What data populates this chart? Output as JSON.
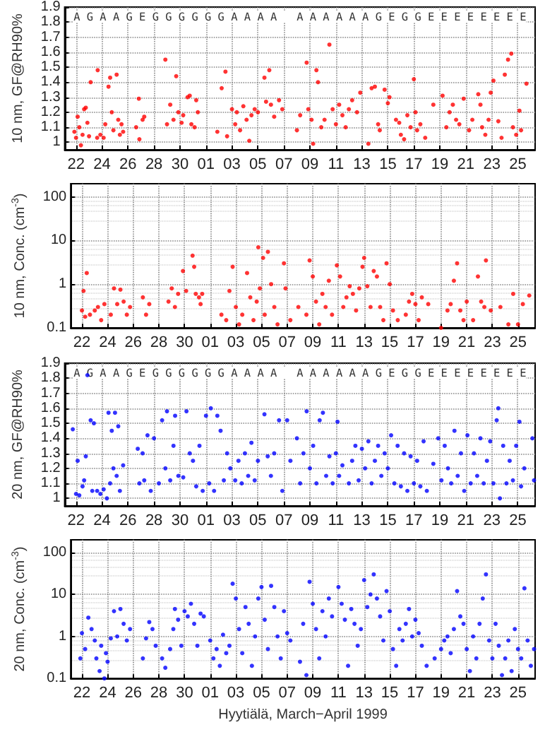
{
  "chart_data": [
    {
      "type": "scatter",
      "ylabel": "10 nm, GF@RH90%",
      "xlim": [
        "1999-03-21T03:00",
        "1999-04-26T08:00"
      ],
      "ylim": [
        0.95,
        1.9
      ],
      "yticks": [
        1,
        1.1,
        1.2,
        1.3,
        1.4,
        1.5,
        1.6,
        1.7,
        1.8,
        1.9
      ],
      "xticks": [
        {
          "value": "1999-03-22",
          "label": "22"
        },
        {
          "value": "1999-03-24",
          "label": "24"
        },
        {
          "value": "1999-03-26",
          "label": "26"
        },
        {
          "value": "1999-03-28",
          "label": "28"
        },
        {
          "value": "1999-03-30",
          "label": "30"
        },
        {
          "value": "1999-04-01",
          "label": "01"
        },
        {
          "value": "1999-04-03",
          "label": "03"
        },
        {
          "value": "1999-04-05",
          "label": "05"
        },
        {
          "value": "1999-04-07",
          "label": "07"
        },
        {
          "value": "1999-04-09",
          "label": "09"
        },
        {
          "value": "1999-04-11",
          "label": "11"
        },
        {
          "value": "1999-04-13",
          "label": "13"
        },
        {
          "value": "1999-04-15",
          "label": "15"
        },
        {
          "value": "1999-04-17",
          "label": "17"
        },
        {
          "value": "1999-04-19",
          "label": "19"
        },
        {
          "value": "1999-04-21",
          "label": "21"
        },
        {
          "value": "1999-04-23",
          "label": "23"
        },
        {
          "value": "1999-04-25",
          "label": "25"
        }
      ],
      "grid": true,
      "marker": "circle",
      "annotations": [
        "A G A A G E G G G G G G A A A A   A A A A A A G E G G E E E E E E E E"
      ],
      "series": [
        {
          "color": "#ff0000",
          "x": [
            "1999-03-21T21:00",
            "1999-03-22T00:00",
            "1999-03-22T03:00",
            "1999-03-22T06:00",
            "1999-03-22T09:00",
            "1999-03-22T12:00",
            "1999-03-22T15:00",
            "1999-03-22T18:00",
            "1999-03-22T21:00",
            "1999-03-23T00:00",
            "1999-03-23T03:00",
            "1999-03-23T15:00",
            "1999-03-23T16:00",
            "1999-03-23T21:00",
            "1999-03-24T03:00",
            "1999-03-24T06:00",
            "1999-03-24T12:00",
            "1999-03-24T15:00",
            "1999-03-24T18:00",
            "1999-03-24T21:00",
            "1999-03-25T03:00",
            "1999-03-25T06:00",
            "1999-03-25T09:00",
            "1999-03-25T12:00",
            "1999-03-25T15:00",
            "1999-03-26T15:00",
            "1999-03-26T20:00",
            "1999-03-26T21:00",
            "1999-03-27T03:00",
            "1999-03-27T06:00",
            "1999-03-28T21:00",
            "1999-03-29T00:00",
            "1999-03-29T06:00",
            "1999-03-29T12:00",
            "1999-03-29T17:00",
            "1999-03-29T21:00",
            "1999-03-30T03:00",
            "1999-03-30T06:00",
            "1999-03-30T14:00",
            "1999-03-30T18:00",
            "1999-03-30T21:00",
            "1999-03-31T03:00",
            "1999-03-31T06:00",
            "1999-03-31T09:00",
            "1999-04-01T21:00",
            "1999-04-02T05:00",
            "1999-04-02T12:00",
            "1999-04-02T15:00",
            "1999-04-03T00:00",
            "1999-04-03T06:00",
            "1999-04-03T09:00",
            "1999-04-03T15:00",
            "1999-04-03T21:00",
            "1999-04-04T03:00",
            "1999-04-04T08:00",
            "1999-04-04T12:00",
            "1999-04-04T18:00",
            "1999-04-05T00:00",
            "1999-04-05T12:00",
            "1999-04-05T15:00",
            "1999-04-05T21:00",
            "1999-04-06T00:00",
            "1999-04-06T06:00",
            "1999-04-06T15:00",
            "1999-04-06T21:00",
            "1999-04-08T00:00",
            "1999-04-08T06:00",
            "1999-04-08T18:00",
            "1999-04-08T21:00",
            "1999-04-09T03:00",
            "1999-04-09T06:00",
            "1999-04-09T12:00",
            "1999-04-09T15:00",
            "1999-04-09T21:00",
            "1999-04-10T03:00",
            "1999-04-10T12:00",
            "1999-04-10T18:00",
            "1999-04-11T00:00",
            "1999-04-11T06:00",
            "1999-04-11T12:00",
            "1999-04-11T18:00",
            "1999-04-12T00:00",
            "1999-04-12T06:00",
            "1999-04-12T15:00",
            "1999-04-12T21:00",
            "1999-04-13T12:00",
            "1999-04-13T18:00",
            "1999-04-14T00:00",
            "1999-04-14T06:00",
            "1999-04-14T09:00",
            "1999-04-14T18:00",
            "1999-04-15T00:00",
            "1999-04-15T03:00",
            "1999-04-15T15:00",
            "1999-04-15T21:00",
            "1999-04-16T00:00",
            "1999-04-16T06:00",
            "1999-04-16T12:00",
            "1999-04-16T18:00",
            "1999-04-17T00:00",
            "1999-04-17T03:00",
            "1999-04-17T06:00",
            "1999-04-17T12:00",
            "1999-04-17T21:00",
            "1999-04-18T12:00",
            "1999-04-19T05:00",
            "1999-04-19T12:00",
            "1999-04-19T18:00",
            "1999-04-20T00:00",
            "1999-04-20T06:00",
            "1999-04-20T12:00",
            "1999-04-20T20:00",
            "1999-04-21T06:00",
            "1999-04-21T12:00",
            "1999-04-21T23:00",
            "1999-04-22T03:00",
            "1999-04-22T06:00",
            "1999-04-22T12:00",
            "1999-04-22T18:00",
            "1999-04-22T22:00",
            "1999-04-23T03:00",
            "1999-04-23T12:00",
            "1999-04-23T18:00",
            "1999-04-24T00:00",
            "1999-04-24T06:00",
            "1999-04-24T12:00",
            "1999-04-24T15:00",
            "1999-04-24T21:00",
            "1999-04-25T03:00",
            "1999-04-25T06:00",
            "1999-04-25T16:00"
          ],
          "values": [
            1.07,
            1.03,
            1.17,
            1.1,
            0.98,
            1.05,
            1.22,
            1.23,
            1.13,
            1.04,
            1.4,
            1.03,
            1.48,
            1.05,
            1.03,
            1.12,
            1.37,
            1.43,
            1.2,
            1.08,
            1.45,
            1.15,
            1.05,
            1.12,
            1.07,
            1.1,
            1.29,
            1.02,
            1.15,
            1.17,
            1.55,
            1.12,
            1.25,
            1.15,
            1.44,
            1.2,
            1.13,
            1.18,
            1.3,
            1.31,
            1.12,
            1.1,
            1.28,
            1.2,
            1.07,
            1.36,
            1.47,
            1.04,
            1.22,
            1.12,
            1.2,
            1.08,
            1.24,
            1.15,
            1.01,
            1.18,
            1.22,
            1.2,
            1.43,
            1.27,
            1.48,
            1.25,
            1.17,
            1.28,
            1.22,
            1.08,
            1.18,
            1.53,
            1.22,
            1.15,
            0.99,
            1.48,
            1.4,
            1.1,
            1.15,
            1.65,
            1.22,
            1.12,
            1.25,
            1.18,
            1.1,
            1.22,
            1.28,
            1.2,
            1.33,
            0.99,
            1.36,
            1.37,
            1.12,
            1.08,
            1.35,
            1.26,
            1.3,
            1.15,
            1.13,
            1.05,
            1.02,
            1.18,
            1.1,
            1.42,
            1.2,
            1.08,
            1.12,
            1.03,
            1.25,
            1.31,
            1.1,
            1.2,
            1.25,
            1.15,
            1.12,
            1.29,
            1.08,
            1.15,
            1.32,
            1.25,
            1.1,
            1.05,
            1.15,
            1.33,
            1.41,
            1.14,
            1.03,
            1.45,
            1.55,
            1.59,
            1.1,
            1.05,
            1.21,
            1.08,
            1.39
          ]
        }
      ]
    },
    {
      "type": "scatter",
      "ylabel": "10 nm, Conc. (cm$^{-3}$)",
      "log": true,
      "xlim": [
        "1999-03-21T03:00",
        "1999-04-26T08:00"
      ],
      "ylim": [
        0.1,
        200
      ],
      "yticks": [
        0.1,
        1,
        10,
        100
      ],
      "xticks": [
        {
          "value": "1999-03-22",
          "label": "22"
        },
        {
          "value": "1999-03-24",
          "label": "24"
        },
        {
          "value": "1999-03-26",
          "label": "26"
        },
        {
          "value": "1999-03-28",
          "label": "28"
        },
        {
          "value": "1999-03-30",
          "label": "30"
        },
        {
          "value": "1999-04-01",
          "label": "01"
        },
        {
          "value": "1999-04-03",
          "label": "03"
        },
        {
          "value": "1999-04-05",
          "label": "05"
        },
        {
          "value": "1999-04-07",
          "label": "07"
        },
        {
          "value": "1999-04-09",
          "label": "09"
        },
        {
          "value": "1999-04-11",
          "label": "11"
        },
        {
          "value": "1999-04-13",
          "label": "13"
        },
        {
          "value": "1999-04-15",
          "label": "15"
        },
        {
          "value": "1999-04-17",
          "label": "17"
        },
        {
          "value": "1999-04-19",
          "label": "19"
        },
        {
          "value": "1999-04-21",
          "label": "21"
        },
        {
          "value": "1999-04-23",
          "label": "23"
        },
        {
          "value": "1999-04-25",
          "label": "25"
        }
      ],
      "grid": true,
      "marker": "circle",
      "series": [
        {
          "color": "#ff0000",
          "x": [
            "1999-03-22T00:00",
            "1999-03-22T03:00",
            "1999-03-22T06:00",
            "1999-03-22T09:00",
            "1999-03-22T15:00",
            "1999-03-23T00:00",
            "1999-03-23T06:00",
            "1999-03-23T12:00",
            "1999-03-23T18:00",
            "1999-03-24T06:00",
            "1999-03-24T12:00",
            "1999-03-24T18:00",
            "1999-03-25T00:00",
            "1999-03-25T06:00",
            "1999-03-25T12:00",
            "1999-03-25T18:00",
            "1999-03-26T18:00",
            "1999-03-27T00:00",
            "1999-03-27T06:00",
            "1999-03-28T18:00",
            "1999-03-29T00:00",
            "1999-03-29T06:00",
            "1999-03-29T12:00",
            "1999-03-29T21:00",
            "1999-03-30T03:00",
            "1999-03-30T15:00",
            "1999-03-30T18:00",
            "1999-03-30T21:00",
            "1999-03-31T03:00",
            "1999-03-31T06:00",
            "1999-03-31T09:00",
            "1999-04-01T21:00",
            "1999-04-02T06:00",
            "1999-04-02T12:00",
            "1999-04-02T18:00",
            "1999-04-03T00:00",
            "1999-04-03T06:00",
            "1999-04-03T12:00",
            "1999-04-03T21:00",
            "1999-04-04T03:00",
            "1999-04-04T09:00",
            "1999-04-04T15:00",
            "1999-04-04T18:00",
            "1999-04-04T21:00",
            "1999-04-05T03:00",
            "1999-04-05T06:00",
            "1999-04-05T12:00",
            "1999-04-05T18:00",
            "1999-04-06T00:00",
            "1999-04-06T06:00",
            "1999-04-06T18:00",
            "1999-04-06T21:00",
            "1999-04-07T06:00",
            "1999-04-07T21:00",
            "1999-04-08T12:00",
            "1999-04-08T18:00",
            "1999-04-09T00:00",
            "1999-04-09T06:00",
            "1999-04-09T12:00",
            "1999-04-09T18:00",
            "1999-04-10T00:00",
            "1999-04-10T06:00",
            "1999-04-10T12:00",
            "1999-04-10T21:00",
            "1999-04-11T03:00",
            "1999-04-11T09:00",
            "1999-04-11T15:00",
            "1999-04-11T21:00",
            "1999-04-12T03:00",
            "1999-04-12T09:00",
            "1999-04-12T15:00",
            "1999-04-12T21:00",
            "1999-04-13T00:00",
            "1999-04-13T06:00",
            "1999-04-13T12:00",
            "1999-04-13T18:00",
            "1999-04-14T00:00",
            "1999-04-14T06:00",
            "1999-04-14T12:00",
            "1999-04-14T18:00",
            "1999-04-15T00:00",
            "1999-04-15T06:00",
            "1999-04-15T15:00",
            "1999-04-16T06:00",
            "1999-04-16T12:00",
            "1999-04-16T18:00",
            "1999-04-17T00:00",
            "1999-04-17T06:00",
            "1999-04-17T12:00",
            "1999-04-18T00:00",
            "1999-04-19T00:00",
            "1999-04-19T12:00",
            "1999-04-19T18:00",
            "1999-04-20T00:00",
            "1999-04-20T06:00",
            "1999-04-20T12:00",
            "1999-04-20T18:00",
            "1999-04-21T00:00",
            "1999-04-21T12:00",
            "1999-04-21T21:00",
            "1999-04-22T03:00",
            "1999-04-22T09:00",
            "1999-04-22T12:00",
            "1999-04-22T21:00",
            "1999-04-23T15:00",
            "1999-04-24T06:00",
            "1999-04-24T15:00",
            "1999-04-25T00:00",
            "1999-04-25T09:00",
            "1999-04-25T21:00"
          ],
          "values": [
            0.25,
            0.7,
            0.18,
            1.8,
            0.2,
            0.25,
            0.3,
            0.15,
            0.35,
            0.2,
            0.8,
            0.35,
            0.75,
            0.4,
            0.2,
            0.3,
            0.5,
            0.2,
            0.35,
            0.4,
            0.8,
            0.3,
            0.6,
            2,
            0.7,
            4.5,
            2.5,
            0.6,
            0.5,
            0.35,
            0.6,
            0.2,
            0.15,
            0.7,
            2.5,
            0.3,
            0.12,
            0.2,
            1.8,
            0.5,
            0.15,
            0.4,
            7,
            0.8,
            4,
            0.2,
            5.5,
            1,
            0.3,
            0.12,
            3,
            0.8,
            0.15,
            0.3,
            0.2,
            3.5,
            1.5,
            0.4,
            0.12,
            0.6,
            0.3,
            1.2,
            0.2,
            2.7,
            1.5,
            0.3,
            0.5,
            0.9,
            0.6,
            0.25,
            0.8,
            2.5,
            4,
            0.9,
            0.3,
            2,
            1.5,
            0.3,
            0.15,
            3,
            1,
            0.25,
            0.15,
            0.2,
            0.4,
            0.6,
            0.35,
            0.15,
            0.5,
            0.35,
            0.1,
            0.25,
            0.35,
            1.2,
            3,
            0.25,
            0.15,
            0.4,
            0.15,
            1.5,
            0.4,
            0.3,
            3.5,
            0.25,
            0.3,
            0.12,
            0.6,
            0.12,
            0.35,
            0.55
          ]
        }
      ]
    },
    {
      "type": "scatter",
      "ylabel": "20 nm, GF@RH90%",
      "xlim": [
        "1999-03-21T03:00",
        "1999-04-26T08:00"
      ],
      "ylim": [
        0.95,
        1.9
      ],
      "yticks": [
        1,
        1.1,
        1.2,
        1.3,
        1.4,
        1.5,
        1.6,
        1.7,
        1.8,
        1.9
      ],
      "xticks": [
        {
          "value": "1999-03-22",
          "label": "22"
        },
        {
          "value": "1999-03-24",
          "label": "24"
        },
        {
          "value": "1999-03-26",
          "label": "26"
        },
        {
          "value": "1999-03-28",
          "label": "28"
        },
        {
          "value": "1999-03-30",
          "label": "30"
        },
        {
          "value": "1999-04-01",
          "label": "01"
        },
        {
          "value": "1999-04-03",
          "label": "03"
        },
        {
          "value": "1999-04-05",
          "label": "05"
        },
        {
          "value": "1999-04-07",
          "label": "07"
        },
        {
          "value": "1999-04-09",
          "label": "09"
        },
        {
          "value": "1999-04-11",
          "label": "11"
        },
        {
          "value": "1999-04-13",
          "label": "13"
        },
        {
          "value": "1999-04-15",
          "label": "15"
        },
        {
          "value": "1999-04-17",
          "label": "17"
        },
        {
          "value": "1999-04-19",
          "label": "19"
        },
        {
          "value": "1999-04-21",
          "label": "21"
        },
        {
          "value": "1999-04-23",
          "label": "23"
        },
        {
          "value": "1999-04-25",
          "label": "25"
        }
      ],
      "grid": true,
      "marker": "circle",
      "annotations": [
        "A G A A G E G G G G G G A A A A   A A A A A A G E G G E E E E E E E E"
      ],
      "series": [
        {
          "color": "#0000ff",
          "x": [
            "1999-03-21T18:00",
            "1999-03-22T00:00",
            "1999-03-22T03:00",
            "1999-03-22T06:00",
            "1999-03-22T12:00",
            "1999-03-22T15:00",
            "1999-03-22T18:00",
            "1999-03-22T21:00",
            "1999-03-23T03:00",
            "1999-03-23T06:00",
            "1999-03-23T09:00",
            "1999-03-23T15:00",
            "1999-03-23T21:00",
            "1999-03-24T03:00",
            "1999-03-24T09:00",
            "1999-03-24T12:00",
            "1999-03-24T15:00",
            "1999-03-24T18:00",
            "1999-03-24T21:00",
            "1999-03-25T00:00",
            "1999-03-25T03:00",
            "1999-03-25T06:00",
            "1999-03-25T09:00",
            "1999-03-25T15:00",
            "1999-03-26T18:00",
            "1999-03-26T21:00",
            "1999-03-27T03:00",
            "1999-03-27T06:00",
            "1999-03-27T12:00",
            "1999-03-27T18:00",
            "1999-03-28T00:00",
            "1999-03-28T09:00",
            "1999-03-28T15:00",
            "1999-03-28T21:00",
            "1999-03-29T00:00",
            "1999-03-29T06:00",
            "1999-03-29T12:00",
            "1999-03-29T15:00",
            "1999-03-29T21:00",
            "1999-03-30T06:00",
            "1999-03-30T12:00",
            "1999-03-30T18:00",
            "1999-03-31T00:00",
            "1999-03-31T06:00",
            "1999-03-31T12:00",
            "1999-03-31T18:00",
            "1999-04-01T00:00",
            "1999-04-01T06:00",
            "1999-04-01T09:00",
            "1999-04-01T15:00",
            "1999-04-01T21:00",
            "1999-04-02T03:00",
            "1999-04-02T09:00",
            "1999-04-02T15:00",
            "1999-04-02T21:00",
            "1999-04-03T06:00",
            "1999-04-03T12:00",
            "1999-04-03T18:00",
            "1999-04-04T00:00",
            "1999-04-04T06:00",
            "1999-04-04T12:00",
            "1999-04-04T18:00",
            "1999-04-05T00:00",
            "1999-04-05T12:00",
            "1999-04-05T18:00",
            "1999-04-06T00:00",
            "1999-04-06T06:00",
            "1999-04-06T15:00",
            "1999-04-06T21:00",
            "1999-04-07T06:00",
            "1999-04-07T12:00",
            "1999-04-08T00:00",
            "1999-04-08T06:00",
            "1999-04-08T12:00",
            "1999-04-08T18:00",
            "1999-04-09T00:00",
            "1999-04-09T06:00",
            "1999-04-09T12:00",
            "1999-04-09T18:00",
            "1999-04-10T00:00",
            "1999-04-10T06:00",
            "1999-04-10T12:00",
            "1999-04-10T18:00",
            "1999-04-11T00:00",
            "1999-04-11T03:00",
            "1999-04-11T06:00",
            "1999-04-11T12:00",
            "1999-04-12T00:00",
            "1999-04-12T06:00",
            "1999-04-12T12:00",
            "1999-04-12T18:00",
            "1999-04-13T00:00",
            "1999-04-13T06:00",
            "1999-04-13T12:00",
            "1999-04-13T18:00",
            "1999-04-14T00:00",
            "1999-04-14T06:00",
            "1999-04-14T12:00",
            "1999-04-14T18:00",
            "1999-04-15T00:00",
            "1999-04-15T06:00",
            "1999-04-15T12:00",
            "1999-04-15T18:00",
            "1999-04-16T00:00",
            "1999-04-16T06:00",
            "1999-04-16T12:00",
            "1999-04-16T18:00",
            "1999-04-17T00:00",
            "1999-04-17T06:00",
            "1999-04-17T12:00",
            "1999-04-17T18:00",
            "1999-04-18T00:00",
            "1999-04-18T12:00",
            "1999-04-18T21:00",
            "1999-04-19T03:00",
            "1999-04-19T09:00",
            "1999-04-19T15:00",
            "1999-04-19T21:00",
            "1999-04-20T03:00",
            "1999-04-20T09:00",
            "1999-04-20T15:00",
            "1999-04-20T21:00",
            "1999-04-21T03:00",
            "1999-04-21T09:00",
            "1999-04-21T15:00",
            "1999-04-21T21:00",
            "1999-04-22T03:00",
            "1999-04-22T09:00",
            "1999-04-22T15:00",
            "1999-04-22T21:00",
            "1999-04-23T03:00",
            "1999-04-23T09:00",
            "1999-04-23T12:00",
            "1999-04-23T15:00",
            "1999-04-23T21:00",
            "1999-04-24T03:00",
            "1999-04-24T09:00",
            "1999-04-24T15:00",
            "1999-04-24T21:00",
            "1999-04-25T03:00",
            "1999-04-25T06:00",
            "1999-04-25T12:00",
            "1999-04-26T03:00",
            "1999-04-26T06:00"
          ],
          "values": [
            1.46,
            1.03,
            1.25,
            1.02,
            1.08,
            1.12,
            1.28,
            1.82,
            1.52,
            1.05,
            1.5,
            1.05,
            1.03,
            1.06,
            1,
            1.57,
            1.1,
            1.45,
            1.2,
            1.57,
            1.15,
            1.48,
            1.05,
            1.22,
            1.33,
            1.1,
            1.3,
            1.12,
            1.42,
            1.05,
            1.4,
            1.1,
            1.52,
            1.2,
            1.58,
            1.12,
            1.35,
            1.55,
            1.15,
            1.14,
            1.58,
            1.3,
            1.25,
            1.08,
            1.35,
            1.05,
            1.55,
            1.1,
            1.6,
            1.05,
            1.55,
            1.45,
            1.12,
            1.3,
            1.2,
            1.12,
            1.25,
            1.1,
            1.3,
            1.15,
            1.37,
            1.12,
            1.25,
            1.56,
            1.28,
            1.15,
            1.3,
            1.52,
            1.05,
            1.52,
            1.25,
            1.4,
            1.1,
            1.3,
            1.58,
            1.2,
            1.35,
            1.1,
            1.52,
            1.57,
            1.15,
            1.28,
            1.1,
            1.3,
            1.51,
            1.15,
            1.22,
            1.1,
            1.25,
            1.35,
            1.12,
            1.33,
            1.2,
            1.38,
            1.1,
            1.25,
            1.35,
            1.15,
            1.3,
            1.2,
            1.42,
            1.1,
            1.35,
            1.08,
            1.3,
            1.05,
            1.28,
            1.1,
            1.25,
            1.08,
            1.38,
            1.05,
            1.23,
            1.4,
            1.12,
            1.35,
            1.2,
            1.1,
            1.45,
            1.15,
            1.3,
            1.05,
            1.42,
            1.1,
            1.3,
            1.15,
            1.4,
            1.1,
            1.25,
            1.38,
            1.1,
            1.52,
            1.6,
            1,
            1.35,
            1.1,
            1.25,
            1.12,
            1.35,
            1.51,
            1.08,
            1.2,
            1.4,
            1.12
          ]
        }
      ]
    },
    {
      "type": "scatter",
      "ylabel": "20 nm, Conc. (cm$^{-3}$)",
      "xlabel": "Hyytiälä, March−April 1999",
      "log": true,
      "xlim": [
        "1999-03-21T03:00",
        "1999-04-26T08:00"
      ],
      "ylim": [
        0.1,
        200
      ],
      "yticks": [
        0.1,
        1,
        10,
        100
      ],
      "xticks": [
        {
          "value": "1999-03-22",
          "label": "22"
        },
        {
          "value": "1999-03-24",
          "label": "24"
        },
        {
          "value": "1999-03-26",
          "label": "26"
        },
        {
          "value": "1999-03-28",
          "label": "28"
        },
        {
          "value": "1999-03-30",
          "label": "30"
        },
        {
          "value": "1999-04-01",
          "label": "01"
        },
        {
          "value": "1999-04-03",
          "label": "03"
        },
        {
          "value": "1999-04-05",
          "label": "05"
        },
        {
          "value": "1999-04-07",
          "label": "07"
        },
        {
          "value": "1999-04-09",
          "label": "09"
        },
        {
          "value": "1999-04-11",
          "label": "11"
        },
        {
          "value": "1999-04-13",
          "label": "13"
        },
        {
          "value": "1999-04-15",
          "label": "15"
        },
        {
          "value": "1999-04-17",
          "label": "17"
        },
        {
          "value": "1999-04-19",
          "label": "19"
        },
        {
          "value": "1999-04-21",
          "label": "21"
        },
        {
          "value": "1999-04-23",
          "label": "23"
        },
        {
          "value": "1999-04-25",
          "label": "25"
        }
      ],
      "grid": true,
      "marker": "circle",
      "series": [
        {
          "color": "#0000ff",
          "x": [
            "1999-03-21T21:00",
            "1999-03-22T00:00",
            "1999-03-22T06:00",
            "1999-03-22T12:00",
            "1999-03-22T18:00",
            "1999-03-23T00:00",
            "1999-03-23T03:00",
            "1999-03-23T09:00",
            "1999-03-23T12:00",
            "1999-03-23T18:00",
            "1999-03-23T21:00",
            "1999-03-24T00:00",
            "1999-03-24T06:00",
            "1999-03-24T12:00",
            "1999-03-24T18:00",
            "1999-03-25T00:00",
            "1999-03-25T06:00",
            "1999-03-25T12:00",
            "1999-03-25T18:00",
            "1999-03-26T18:00",
            "1999-03-27T00:00",
            "1999-03-27T06:00",
            "1999-03-27T12:00",
            "1999-03-27T18:00",
            "1999-03-28T06:00",
            "1999-03-28T12:00",
            "1999-03-28T21:00",
            "1999-03-29T03:00",
            "1999-03-29T06:00",
            "1999-03-29T12:00",
            "1999-03-29T18:00",
            "1999-03-30T00:00",
            "1999-03-30T06:00",
            "1999-03-30T12:00",
            "1999-03-30T18:00",
            "1999-03-31T00:00",
            "1999-03-31T06:00",
            "1999-03-31T12:00",
            "1999-04-01T00:00",
            "1999-04-01T06:00",
            "1999-04-01T12:00",
            "1999-04-01T18:00",
            "1999-04-02T00:00",
            "1999-04-02T06:00",
            "1999-04-02T12:00",
            "1999-04-02T18:00",
            "1999-04-03T00:00",
            "1999-04-03T06:00",
            "1999-04-03T12:00",
            "1999-04-03T18:00",
            "1999-04-04T00:00",
            "1999-04-04T06:00",
            "1999-04-04T12:00",
            "1999-04-04T18:00",
            "1999-04-05T00:00",
            "1999-04-05T06:00",
            "1999-04-05T12:00",
            "1999-04-05T18:00",
            "1999-04-06T00:00",
            "1999-04-06T06:00",
            "1999-04-06T12:00",
            "1999-04-06T18:00",
            "1999-04-07T00:00",
            "1999-04-07T06:00",
            "1999-04-08T00:00",
            "1999-04-08T06:00",
            "1999-04-08T12:00",
            "1999-04-08T18:00",
            "1999-04-09T00:00",
            "1999-04-09T06:00",
            "1999-04-09T12:00",
            "1999-04-09T18:00",
            "1999-04-10T00:00",
            "1999-04-10T06:00",
            "1999-04-10T12:00",
            "1999-04-11T00:00",
            "1999-04-11T06:00",
            "1999-04-11T12:00",
            "1999-04-11T18:00",
            "1999-04-12T00:00",
            "1999-04-12T06:00",
            "1999-04-12T12:00",
            "1999-04-12T18:00",
            "1999-04-13T00:00",
            "1999-04-13T06:00",
            "1999-04-13T12:00",
            "1999-04-13T18:00",
            "1999-04-14T00:00",
            "1999-04-14T06:00",
            "1999-04-14T12:00",
            "1999-04-14T18:00",
            "1999-04-15T00:00",
            "1999-04-15T06:00",
            "1999-04-15T12:00",
            "1999-04-15T18:00",
            "1999-04-16T00:00",
            "1999-04-16T06:00",
            "1999-04-16T12:00",
            "1999-04-16T18:00",
            "1999-04-17T00:00",
            "1999-04-17T06:00",
            "1999-04-17T12:00",
            "1999-04-17T21:00",
            "1999-04-18T12:00",
            "1999-04-19T00:00",
            "1999-04-19T06:00",
            "1999-04-19T12:00",
            "1999-04-19T18:00",
            "1999-04-20T00:00",
            "1999-04-20T06:00",
            "1999-04-20T12:00",
            "1999-04-20T18:00",
            "1999-04-21T00:00",
            "1999-04-21T06:00",
            "1999-04-21T12:00",
            "1999-04-21T18:00",
            "1999-04-22T00:00",
            "1999-04-22T06:00",
            "1999-04-22T12:00",
            "1999-04-22T18:00",
            "1999-04-23T00:00",
            "1999-04-23T06:00",
            "1999-04-23T12:00",
            "1999-04-23T18:00",
            "1999-04-24T00:00",
            "1999-04-24T06:00",
            "1999-04-24T12:00",
            "1999-04-24T18:00",
            "1999-04-25T00:00",
            "1999-04-25T06:00",
            "1999-04-25T12:00",
            "1999-04-25T18:00",
            "1999-04-26T00:00",
            "1999-04-26T06:00"
          ],
          "values": [
            0.3,
            1.2,
            0.5,
            2.8,
            1.5,
            0.8,
            0.3,
            0.15,
            0.6,
            0.1,
            0.4,
            0.25,
            0.9,
            4,
            1,
            4.5,
            2,
            0.8,
            1.5,
            0.3,
            0.9,
            2.2,
            1.5,
            0.6,
            0.3,
            0.18,
            0.5,
            1.5,
            4.5,
            2.5,
            0.6,
            4,
            3,
            6,
            2,
            0.6,
            3.5,
            3,
            0.8,
            0.3,
            0.5,
            0.2,
            1.1,
            0.4,
            0.6,
            18,
            8,
            1.5,
            0.4,
            5,
            2,
            0.2,
            1,
            8,
            15,
            2.5,
            0.5,
            16,
            5,
            1,
            0.3,
            4,
            1.2,
            0.8,
            0.25,
            2,
            0.12,
            20,
            6,
            1.5,
            0.3,
            4,
            1,
            8,
            3,
            15,
            6,
            2.5,
            0.2,
            4.5,
            2,
            0.6,
            1.5,
            22,
            5,
            10,
            30,
            8,
            3,
            0.8,
            12,
            4,
            0.5,
            0.2,
            1.5,
            0.8,
            2,
            4.5,
            1,
            2.5,
            1.2,
            0.6,
            0.2,
            0.3,
            0.5,
            0.8,
            1,
            0.4,
            1.5,
            12,
            3,
            2,
            0.5,
            0.15,
            1,
            0.3,
            2,
            8,
            30,
            0.8,
            0.3,
            2,
            0.6,
            0.12,
            0.3,
            0.8,
            0.15,
            1.5,
            0.5,
            0.3,
            14,
            0.8,
            0.2,
            0.5
          ]
        }
      ]
    }
  ]
}
